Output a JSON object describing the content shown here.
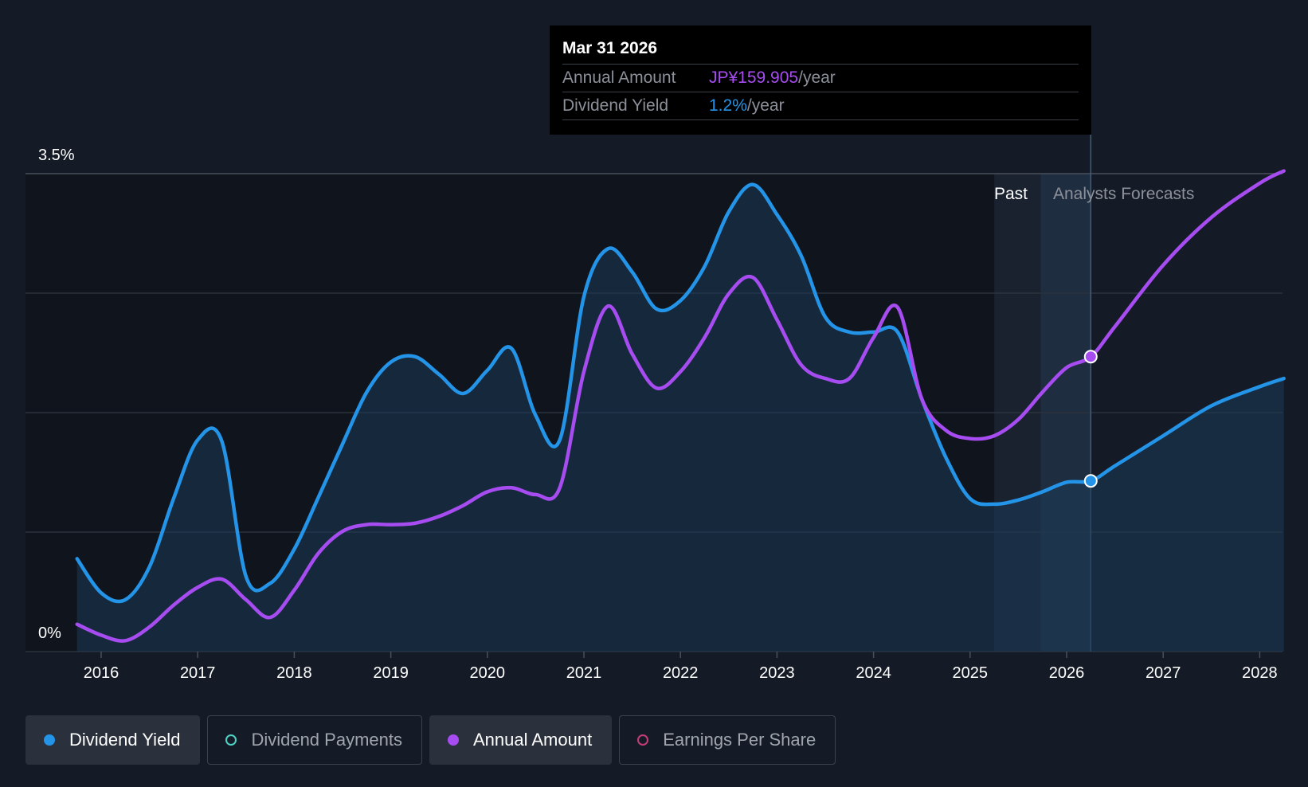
{
  "tooltip": {
    "date": "Mar 31 2026",
    "rows": [
      {
        "key": "Annual Amount",
        "value": "JP¥159.905",
        "unit": "/year"
      },
      {
        "key": "Dividend Yield",
        "value": "1.2%",
        "unit": "/year"
      }
    ]
  },
  "regions": {
    "past": "Past",
    "forecast": "Analysts Forecasts"
  },
  "legend": [
    {
      "label": "Dividend Yield",
      "color": "#2394e8",
      "active": true,
      "icon": "filled-dot-icon"
    },
    {
      "label": "Dividend Payments",
      "color": "#4fd1c5",
      "active": false,
      "icon": "ring-dot-icon"
    },
    {
      "label": "Annual Amount",
      "color": "#a64cf0",
      "active": true,
      "icon": "filled-dot-icon"
    },
    {
      "label": "Earnings Per Share",
      "color": "#c43d78",
      "active": false,
      "icon": "ring-dot-icon"
    }
  ],
  "colors": {
    "yield": "#2394e8",
    "annual": "#a64cf0",
    "background": "#151b26",
    "past_background": "#10141c"
  },
  "chart_data": {
    "type": "line",
    "x_ticks": [
      "2016",
      "2017",
      "2018",
      "2019",
      "2020",
      "2021",
      "2022",
      "2023",
      "2024",
      "2025",
      "2026",
      "2027",
      "2028"
    ],
    "y_tick_labels": [
      "3.5%",
      "0%"
    ],
    "ylim": [
      0,
      3.5
    ],
    "xlim": [
      2015.72,
      2028.25
    ],
    "past_end": 2025.25,
    "forecast_start": 2025.73,
    "cursor_x": 2026.25,
    "grid": true,
    "series": [
      {
        "name": "Dividend Yield",
        "unit": "%",
        "area": true,
        "points": [
          [
            2015.75,
            0.68
          ],
          [
            2016.0,
            0.43
          ],
          [
            2016.25,
            0.38
          ],
          [
            2016.5,
            0.62
          ],
          [
            2016.75,
            1.12
          ],
          [
            2017.0,
            1.55
          ],
          [
            2017.25,
            1.54
          ],
          [
            2017.5,
            0.55
          ],
          [
            2017.75,
            0.5
          ],
          [
            2018.0,
            0.75
          ],
          [
            2018.25,
            1.13
          ],
          [
            2018.5,
            1.52
          ],
          [
            2018.75,
            1.9
          ],
          [
            2019.0,
            2.12
          ],
          [
            2019.25,
            2.16
          ],
          [
            2019.5,
            2.03
          ],
          [
            2019.75,
            1.89
          ],
          [
            2020.0,
            2.06
          ],
          [
            2020.25,
            2.22
          ],
          [
            2020.5,
            1.73
          ],
          [
            2020.75,
            1.55
          ],
          [
            2021.0,
            2.6
          ],
          [
            2021.25,
            2.95
          ],
          [
            2021.5,
            2.78
          ],
          [
            2021.75,
            2.51
          ],
          [
            2022.0,
            2.57
          ],
          [
            2022.25,
            2.82
          ],
          [
            2022.5,
            3.22
          ],
          [
            2022.75,
            3.42
          ],
          [
            2023.0,
            3.2
          ],
          [
            2023.25,
            2.9
          ],
          [
            2023.5,
            2.45
          ],
          [
            2023.75,
            2.34
          ],
          [
            2024.0,
            2.34
          ],
          [
            2024.25,
            2.34
          ],
          [
            2024.5,
            1.85
          ],
          [
            2024.75,
            1.42
          ],
          [
            2025.0,
            1.12
          ],
          [
            2025.25,
            1.08
          ],
          [
            2025.5,
            1.11
          ],
          [
            2025.75,
            1.17
          ],
          [
            2026.0,
            1.24
          ],
          [
            2026.25,
            1.25
          ],
          [
            2026.5,
            1.36
          ],
          [
            2027.0,
            1.58
          ],
          [
            2027.5,
            1.8
          ],
          [
            2028.0,
            1.94
          ],
          [
            2028.25,
            2.0
          ]
        ]
      },
      {
        "name": "Annual Amount",
        "unit": "JP¥",
        "area": false,
        "points": [
          [
            2015.75,
            0.2
          ],
          [
            2016.0,
            0.12
          ],
          [
            2016.25,
            0.08
          ],
          [
            2016.5,
            0.18
          ],
          [
            2016.75,
            0.34
          ],
          [
            2017.0,
            0.47
          ],
          [
            2017.25,
            0.53
          ],
          [
            2017.5,
            0.38
          ],
          [
            2017.75,
            0.25
          ],
          [
            2018.0,
            0.45
          ],
          [
            2018.25,
            0.72
          ],
          [
            2018.5,
            0.88
          ],
          [
            2018.75,
            0.93
          ],
          [
            2019.0,
            0.93
          ],
          [
            2019.25,
            0.94
          ],
          [
            2019.5,
            0.99
          ],
          [
            2019.75,
            1.07
          ],
          [
            2020.0,
            1.17
          ],
          [
            2020.25,
            1.2
          ],
          [
            2020.5,
            1.15
          ],
          [
            2020.75,
            1.2
          ],
          [
            2021.0,
            2.05
          ],
          [
            2021.25,
            2.53
          ],
          [
            2021.5,
            2.18
          ],
          [
            2021.75,
            1.93
          ],
          [
            2022.0,
            2.05
          ],
          [
            2022.25,
            2.3
          ],
          [
            2022.5,
            2.62
          ],
          [
            2022.75,
            2.74
          ],
          [
            2023.0,
            2.43
          ],
          [
            2023.25,
            2.1
          ],
          [
            2023.5,
            2.0
          ],
          [
            2023.75,
            2.0
          ],
          [
            2024.0,
            2.3
          ],
          [
            2024.25,
            2.52
          ],
          [
            2024.5,
            1.85
          ],
          [
            2024.75,
            1.62
          ],
          [
            2025.0,
            1.56
          ],
          [
            2025.25,
            1.58
          ],
          [
            2025.5,
            1.7
          ],
          [
            2025.75,
            1.9
          ],
          [
            2026.0,
            2.08
          ],
          [
            2026.25,
            2.16
          ],
          [
            2026.5,
            2.38
          ],
          [
            2027.0,
            2.83
          ],
          [
            2027.5,
            3.18
          ],
          [
            2028.0,
            3.43
          ],
          [
            2028.25,
            3.52
          ]
        ]
      }
    ],
    "markers": [
      {
        "series": "Dividend Yield",
        "x": 2026.25,
        "y": 1.25
      },
      {
        "series": "Annual Amount",
        "x": 2026.25,
        "y": 2.16
      }
    ]
  }
}
